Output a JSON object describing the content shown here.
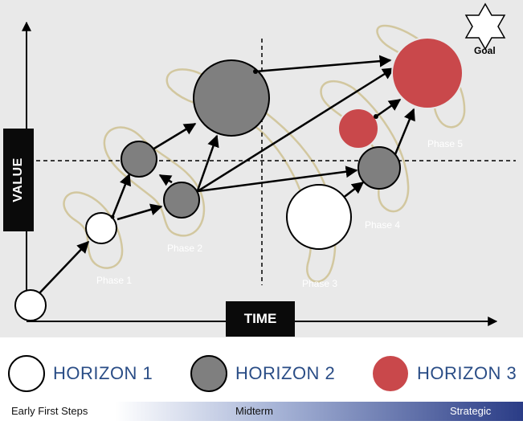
{
  "axes": {
    "value_label": "VALUE",
    "time_label": "TIME"
  },
  "goal_label": "Goal",
  "phases": [
    "Phase 1",
    "Phase 2",
    "Phase 3",
    "Phase 4",
    "Phase 5"
  ],
  "legend": [
    {
      "label": "HORIZON 1",
      "color": "#ffffff"
    },
    {
      "label": "HORIZON 2",
      "color": "#7f7f7f"
    },
    {
      "label": "HORIZON 3",
      "color": "#c9484b"
    }
  ],
  "timeline": {
    "early": "Early First Steps",
    "mid": "Midterm",
    "strategic": "Strategic"
  },
  "colors": {
    "panel": "#e9e9e9",
    "horizon1": "#ffffff",
    "horizon2": "#7f7f7f",
    "horizon3": "#c9484b",
    "phase_outline": "#d2c79f",
    "bar_end": "#2a3c86"
  }
}
